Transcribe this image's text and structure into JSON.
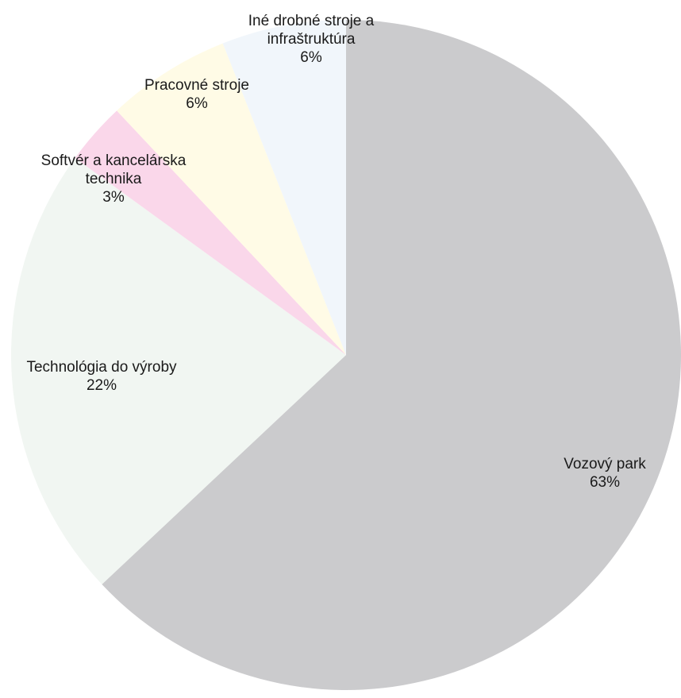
{
  "chart_data": {
    "type": "pie",
    "start": "12 o'clock",
    "direction": "clockwise",
    "legend": "none",
    "slices": [
      {
        "name": "Vozový park",
        "value": 63,
        "value_label": "63%",
        "color": "#cbcbcd"
      },
      {
        "name": "Technológia do výroby",
        "value": 22,
        "value_label": "22%",
        "color": "#f1f6f2"
      },
      {
        "name": "Softvér a kancelárska technika",
        "value": 3,
        "value_label": "3%",
        "color": "#fad7ea"
      },
      {
        "name": "Pracovné stroje",
        "value": 6,
        "value_label": "6%",
        "color": "#fffbe6"
      },
      {
        "name": "Iné drobné stroje a infraštruktúra",
        "value": 6,
        "value_label": "6%",
        "color": "#f1f6fb"
      }
    ]
  }
}
